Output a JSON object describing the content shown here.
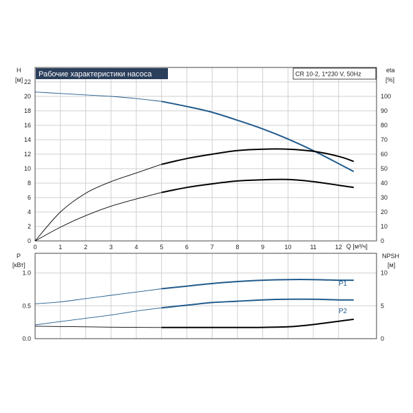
{
  "chart_data": [
    {
      "type": "line",
      "title": "Рабочие характеристики насоса",
      "model_label": "CR 10-2, 1*230 V, 50Hz",
      "x_label": "Q [м³/ч]",
      "y_left_label": "H",
      "y_left_unit": "[м]",
      "y_right_label": "eta",
      "y_right_unit": "[%]",
      "xlim": [
        0,
        13.5
      ],
      "ylim_left": [
        0,
        24
      ],
      "ylim_right": [
        0,
        120
      ],
      "x_ticks": [
        "0",
        "1",
        "2",
        "3",
        "4",
        "5",
        "6",
        "7",
        "8",
        "9",
        "10",
        "11",
        "12"
      ],
      "y_left_ticks": [
        "0",
        "2",
        "4",
        "6",
        "8",
        "10",
        "12",
        "14",
        "16",
        "18",
        "20",
        "22"
      ],
      "y_right_ticks": [
        "0",
        "10",
        "20",
        "30",
        "40",
        "50",
        "60",
        "70",
        "80",
        "90",
        "100"
      ],
      "grid": true,
      "series": [
        {
          "color": "#1f5a8c",
          "axis": "left",
          "x": [
            0,
            1,
            2,
            3,
            4,
            5,
            6,
            7,
            8,
            9,
            10,
            11,
            12,
            12.6
          ],
          "y": [
            20.6,
            20.4,
            20.2,
            20.0,
            19.7,
            19.3,
            18.6,
            17.8,
            16.7,
            15.5,
            14.1,
            12.5,
            10.7,
            9.6
          ]
        },
        {
          "color": "#000000",
          "axis": "right",
          "x": [
            0,
            1,
            2,
            3,
            4,
            5,
            6,
            7,
            8,
            9,
            10,
            11,
            12,
            12.6
          ],
          "y": [
            0,
            20,
            33,
            41,
            47,
            53,
            57,
            60,
            62.5,
            63.5,
            63.5,
            62,
            58.5,
            55
          ]
        },
        {
          "color": "#000000",
          "axis": "right",
          "x": [
            0,
            1,
            2,
            3,
            4,
            5,
            6,
            7,
            8,
            9,
            10,
            11,
            12,
            12.6
          ],
          "y": [
            0,
            9.5,
            17.5,
            24,
            29,
            33.5,
            37,
            39.5,
            41.5,
            42.3,
            42.5,
            41,
            38.5,
            37
          ]
        }
      ]
    },
    {
      "type": "line",
      "y_left_label": "P",
      "y_left_unit": "[кВт]",
      "y_right_label": "NPSH",
      "y_right_unit": "[м]",
      "xlim": [
        0,
        13.5
      ],
      "ylim_left": [
        0,
        1.3
      ],
      "ylim_right": [
        0,
        13
      ],
      "y_left_ticks": [
        "0.0",
        "0.5",
        "1.0"
      ],
      "y_right_ticks": [
        "0",
        "5",
        "10"
      ],
      "grid": true,
      "series": [
        {
          "name": "P1",
          "color": "#1f5a8c",
          "axis": "left",
          "x": [
            0,
            1,
            2,
            3,
            4,
            5,
            6,
            7,
            8,
            9,
            10,
            11,
            12,
            12.6
          ],
          "y": [
            0.53,
            0.56,
            0.61,
            0.66,
            0.71,
            0.76,
            0.8,
            0.84,
            0.87,
            0.89,
            0.9,
            0.9,
            0.89,
            0.89
          ]
        },
        {
          "name": "P2",
          "color": "#1f5a8c",
          "axis": "left",
          "x": [
            0,
            1,
            2,
            3,
            4,
            5,
            6,
            7,
            8,
            9,
            10,
            11,
            12,
            12.6
          ],
          "y": [
            0.21,
            0.26,
            0.31,
            0.36,
            0.42,
            0.47,
            0.51,
            0.55,
            0.57,
            0.59,
            0.6,
            0.6,
            0.59,
            0.59
          ]
        },
        {
          "color": "#000000",
          "axis": "right",
          "x": [
            0,
            1,
            2,
            3,
            4,
            5,
            6,
            7,
            8,
            9,
            10,
            10.5,
            11,
            11.5,
            12,
            12.6
          ],
          "y": [
            1.9,
            1.85,
            1.8,
            1.75,
            1.72,
            1.7,
            1.7,
            1.7,
            1.7,
            1.72,
            1.8,
            1.95,
            2.15,
            2.4,
            2.65,
            2.95
          ]
        }
      ]
    }
  ]
}
